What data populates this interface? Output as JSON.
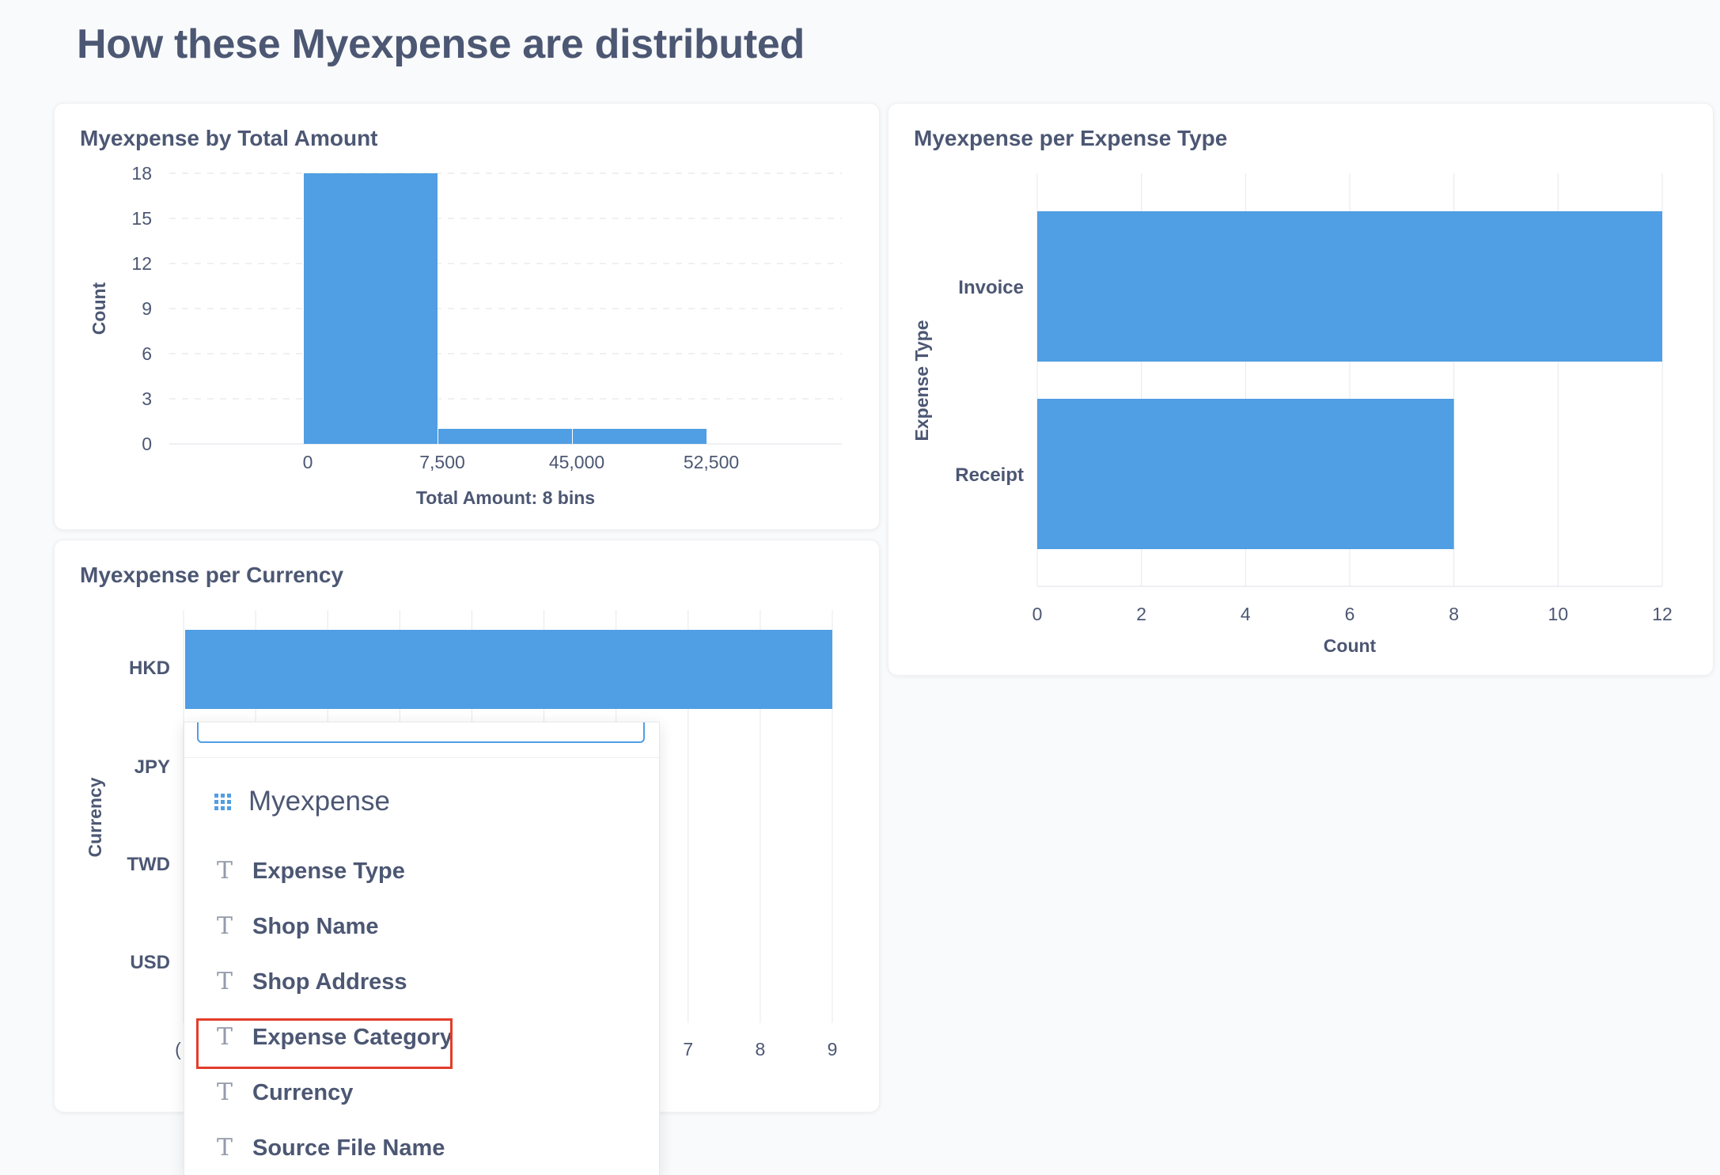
{
  "page": {
    "title": "How these Myexpense are distributed"
  },
  "charts": {
    "total_amount": {
      "title": "Myexpense by Total Amount",
      "chart_data": {
        "type": "bar",
        "title": "Myexpense by Total Amount",
        "xlabel": "Total Amount: 8 bins",
        "ylabel": "Count",
        "x_tick_labels": [
          "0",
          "7,500",
          "45,000",
          "52,500"
        ],
        "y_ticks": [
          0,
          3,
          6,
          9,
          12,
          15,
          18
        ],
        "ylim": [
          0,
          18
        ],
        "bins": [
          {
            "start": 0,
            "end": 7500,
            "value": 18
          },
          {
            "start": 7500,
            "end": 15000,
            "value": 1
          },
          {
            "start": 45000,
            "end": 52500,
            "value": 1
          }
        ],
        "grid": true,
        "bar_color": "#509ee3"
      }
    },
    "expense_type": {
      "title": "Myexpense per Expense Type",
      "chart_data": {
        "type": "bar",
        "orientation": "horizontal",
        "title": "Myexpense per Expense Type",
        "xlabel": "Count",
        "ylabel": "Expense Type",
        "categories": [
          "Invoice",
          "Receipt"
        ],
        "values": [
          12,
          8
        ],
        "x_ticks": [
          0,
          2,
          4,
          6,
          8,
          10,
          12
        ],
        "xlim": [
          0,
          12
        ],
        "grid": true,
        "bar_color": "#509ee3"
      }
    },
    "currency": {
      "title": "Myexpense per Currency",
      "chart_data": {
        "type": "bar",
        "orientation": "horizontal",
        "title": "Myexpense per Currency",
        "ylabel": "Currency",
        "categories": [
          "HKD",
          "JPY",
          "TWD",
          "USD"
        ],
        "values": [
          9,
          null,
          null,
          null
        ],
        "x_ticks_visible": [
          7,
          8,
          9
        ],
        "x_tick_partial": "(",
        "xlim": [
          0,
          9
        ],
        "grid": true,
        "bar_color": "#509ee3"
      }
    }
  },
  "dropdown": {
    "table_name": "Myexpense",
    "table_icon": "grid-icon",
    "field_icon": "T",
    "fields": [
      {
        "label": "Expense Type"
      },
      {
        "label": "Shop Name"
      },
      {
        "label": "Shop Address"
      },
      {
        "label": "Expense Category",
        "highlighted": true
      },
      {
        "label": "Currency"
      },
      {
        "label": "Source File Name"
      }
    ]
  }
}
